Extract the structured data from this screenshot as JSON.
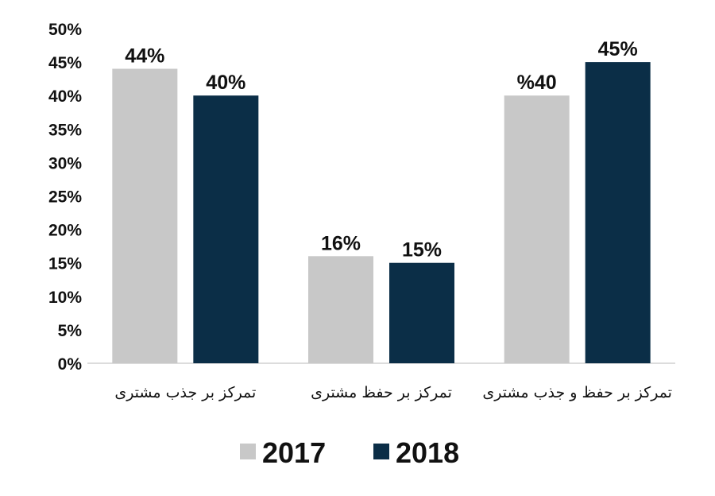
{
  "chart_data": {
    "type": "bar",
    "categories": [
      "تمرکز بر جذب مشتری",
      "تمرکز بر حفظ مشتری",
      "تمرکز بر حفظ و جذب مشتری"
    ],
    "series": [
      {
        "name": "2017",
        "values": [
          44,
          16,
          40
        ],
        "labels": [
          "44%",
          "16%",
          "%40"
        ],
        "color": "#c8c8c8"
      },
      {
        "name": "2018",
        "values": [
          40,
          15,
          45
        ],
        "labels": [
          "40%",
          "15%",
          "45%"
        ],
        "color": "#0b2e47"
      }
    ],
    "y_ticks": [
      "0%",
      "5%",
      "10%",
      "15%",
      "20%",
      "25%",
      "30%",
      "35%",
      "40%",
      "45%",
      "50%"
    ],
    "ylim": [
      0,
      50
    ],
    "grid": false,
    "legend_position": "bottom-center",
    "title": "",
    "xlabel": "",
    "ylabel": ""
  }
}
